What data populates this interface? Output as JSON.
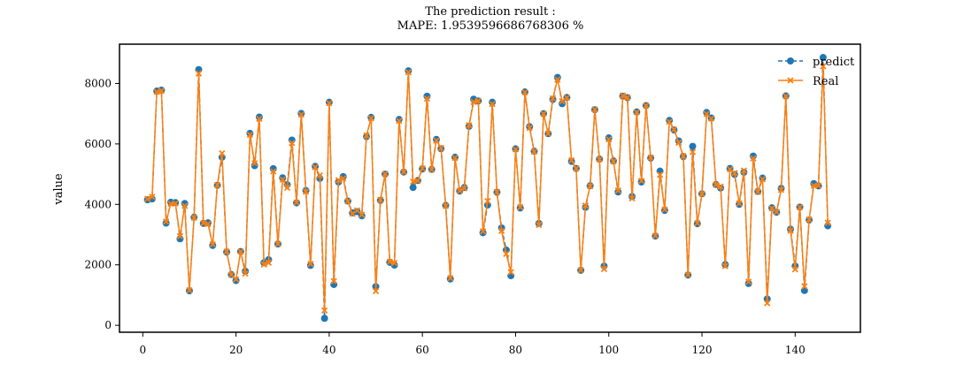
{
  "chart_data": {
    "type": "line",
    "title": "The prediction result :",
    "subtitle": "MAPE: 1.9539596686768306 %",
    "xlabel": "",
    "ylabel": "value",
    "xlim": [
      -5,
      154
    ],
    "ylim": [
      -230,
      9300
    ],
    "xticks": [
      0,
      20,
      40,
      60,
      80,
      100,
      120,
      140
    ],
    "yticks": [
      0,
      2000,
      4000,
      6000,
      8000
    ],
    "grid": false,
    "legend_position": "top-right",
    "series": [
      {
        "name": "predict",
        "color": "#1f77b4",
        "style": "dashed",
        "marker": "circle",
        "values": [
          4150,
          4180,
          7750,
          7780,
          3380,
          4070,
          4060,
          2860,
          4030,
          1140,
          3580,
          8460,
          3370,
          3390,
          2640,
          4630,
          5560,
          2420,
          1680,
          1480,
          2440,
          1790,
          6350,
          5280,
          6890,
          2070,
          2170,
          5180,
          2690,
          4880,
          4650,
          6130,
          4050,
          7010,
          4460,
          1980,
          5260,
          4860,
          230,
          7380,
          1350,
          4740,
          4920,
          4110,
          3720,
          3760,
          3620,
          6240,
          6880,
          1280,
          4130,
          5000,
          2080,
          1990,
          6810,
          5070,
          8420,
          4560,
          4790,
          5170,
          7580,
          5160,
          6150,
          5840,
          3970,
          1530,
          5560,
          4440,
          4560,
          6580,
          7480,
          7420,
          3060,
          3980,
          7380,
          4400,
          3220,
          2490,
          1640,
          5840,
          3880,
          7720,
          6570,
          5760,
          3370,
          7000,
          6340,
          7470,
          8200,
          7330,
          7540,
          5420,
          5190,
          1820,
          3900,
          4620,
          7130,
          5500,
          1960,
          6200,
          5440,
          4410,
          7580,
          7530,
          4260,
          7060,
          4740,
          7270,
          5530,
          2950,
          5100,
          3800,
          6780,
          6460,
          6100,
          5580,
          1660,
          5920,
          3360,
          4350,
          7040,
          6860,
          4660,
          4540,
          2010,
          5190,
          4990,
          4000,
          5060,
          1380,
          5600,
          4430,
          4870,
          870,
          3890,
          3740,
          4530,
          7590,
          3180,
          1960,
          3910,
          1150,
          3480,
          4690,
          4610,
          8860,
          3290
        ]
      },
      {
        "name": "Real",
        "color": "#ff7f0e",
        "style": "solid",
        "marker": "x",
        "values": [
          4180,
          4250,
          7720,
          7760,
          3430,
          4020,
          4030,
          2950,
          3950,
          1160,
          3560,
          8330,
          3380,
          3350,
          2680,
          4640,
          5690,
          2440,
          1670,
          1520,
          2440,
          1710,
          6300,
          5360,
          6830,
          2010,
          2070,
          5090,
          2690,
          4820,
          4550,
          6030,
          4060,
          6970,
          4420,
          2030,
          5230,
          4960,
          490,
          7350,
          1460,
          4800,
          4860,
          4100,
          3690,
          3800,
          3660,
          6280,
          6850,
          1130,
          4150,
          5010,
          2100,
          2060,
          6760,
          5070,
          8370,
          4750,
          4780,
          5190,
          7500,
          5150,
          6110,
          5870,
          3950,
          1560,
          5540,
          4450,
          4530,
          6620,
          7390,
          7430,
          3110,
          4110,
          7320,
          4410,
          3120,
          2360,
          1760,
          5820,
          3910,
          7710,
          6530,
          5740,
          3320,
          7000,
          6340,
          7510,
          8130,
          7410,
          7530,
          5460,
          5190,
          1820,
          3960,
          4600,
          7140,
          5490,
          1860,
          6150,
          5420,
          4460,
          7600,
          7540,
          4200,
          7050,
          4780,
          7270,
          5550,
          2960,
          4980,
          3830,
          6730,
          6480,
          6040,
          5600,
          1670,
          5730,
          3380,
          4350,
          6990,
          6840,
          4650,
          4590,
          1960,
          5160,
          5040,
          4030,
          5120,
          1440,
          5520,
          4410,
          4830,
          730,
          3870,
          3750,
          4480,
          7580,
          3130,
          1850,
          3910,
          1290,
          3500,
          4620,
          4620,
          8570,
          3390
        ]
      }
    ]
  }
}
